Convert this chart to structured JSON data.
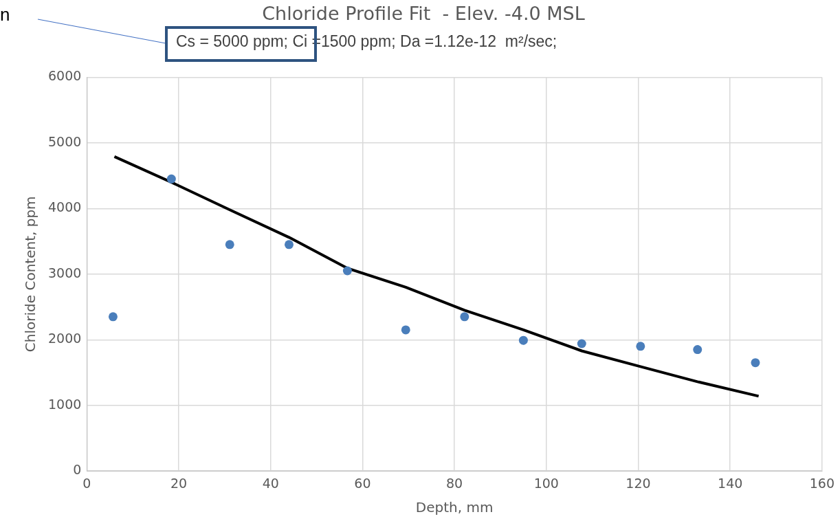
{
  "chart_data": {
    "type": "scatter",
    "title": "Chloride Profile Fit  - Elev. -4.0 MSL",
    "subtitle": "Cs = 5000 ppm; Ci =1500 ppm; Da =1.12e-12  m²/sec;",
    "xlabel": "Depth, mm",
    "ylabel": "Chloride Content, ppm",
    "annotations": [
      "n"
    ],
    "xlim": [
      0,
      160
    ],
    "xticks": [
      0,
      20,
      40,
      60,
      80,
      100,
      120,
      140,
      160
    ],
    "ylim": [
      0,
      6000
    ],
    "yticks": [
      0,
      1000,
      2000,
      3000,
      4000,
      5000,
      6000
    ],
    "grid": true,
    "legend": false,
    "series": [
      {
        "type": "scatter",
        "color": "#4a7ebb",
        "marker": "circle",
        "x": [
          5.7,
          18.4,
          31.1,
          44.0,
          56.7,
          69.4,
          82.2,
          95.0,
          107.7,
          120.5,
          132.9,
          145.5
        ],
        "values": [
          2350,
          4450,
          3450,
          3450,
          3050,
          2150,
          2350,
          1990,
          1940,
          1900,
          1850,
          1650
        ]
      },
      {
        "type": "line",
        "color": "#000000",
        "marker": "none",
        "line_style": "solid",
        "x": [
          6.0,
          18.4,
          31.1,
          44.0,
          56.7,
          69.4,
          82.2,
          95.0,
          107.7,
          120.5,
          132.9,
          146.2
        ],
        "values": [
          4790,
          4400,
          3980,
          3560,
          3090,
          2800,
          2450,
          2150,
          1830,
          1590,
          1360,
          1140
        ]
      }
    ]
  }
}
